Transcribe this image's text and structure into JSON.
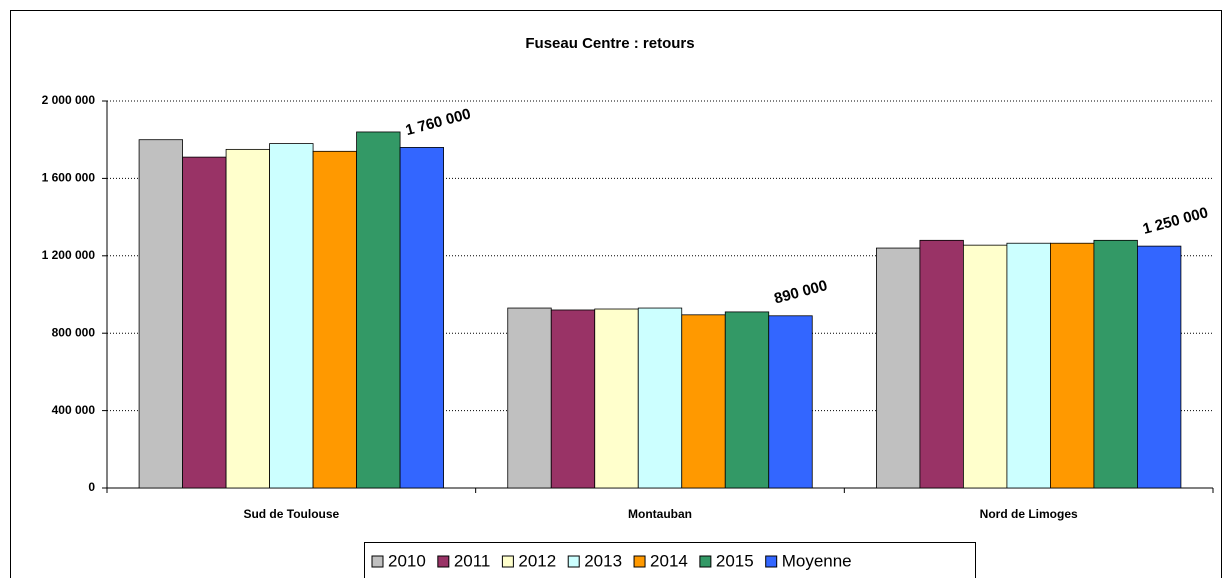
{
  "chart_data": {
    "type": "bar",
    "title": "Fuseau Centre : retours",
    "categories": [
      "Sud de Toulouse",
      "Montauban",
      "Nord de Limoges"
    ],
    "series": [
      {
        "name": "2010",
        "color": "#c0c0c0",
        "values": [
          1800000,
          930000,
          1240000
        ]
      },
      {
        "name": "2011",
        "color": "#993366",
        "values": [
          1710000,
          920000,
          1280000
        ]
      },
      {
        "name": "2012",
        "color": "#ffffcc",
        "values": [
          1750000,
          925000,
          1255000
        ]
      },
      {
        "name": "2013",
        "color": "#ccffff",
        "values": [
          1780000,
          930000,
          1265000
        ]
      },
      {
        "name": "2014",
        "color": "#ff9900",
        "values": [
          1740000,
          895000,
          1265000
        ]
      },
      {
        "name": "2015",
        "color": "#339966",
        "values": [
          1840000,
          910000,
          1280000
        ]
      },
      {
        "name": "Moyenne",
        "color": "#3366ff",
        "values": [
          1760000,
          890000,
          1250000
        ],
        "value_labels": [
          "1 760 000",
          "890 000",
          "1 250 000"
        ]
      }
    ],
    "ylim": [
      0,
      2000000
    ],
    "yticks": [
      {
        "value": 0,
        "label": "0"
      },
      {
        "value": 400000,
        "label": "400 000"
      },
      {
        "value": 800000,
        "label": "800 000"
      },
      {
        "value": 1200000,
        "label": "1 200 000"
      },
      {
        "value": 1600000,
        "label": "1 600 000"
      },
      {
        "value": 2000000,
        "label": "2 000 000"
      }
    ],
    "grid": true,
    "legend": "bottom"
  }
}
